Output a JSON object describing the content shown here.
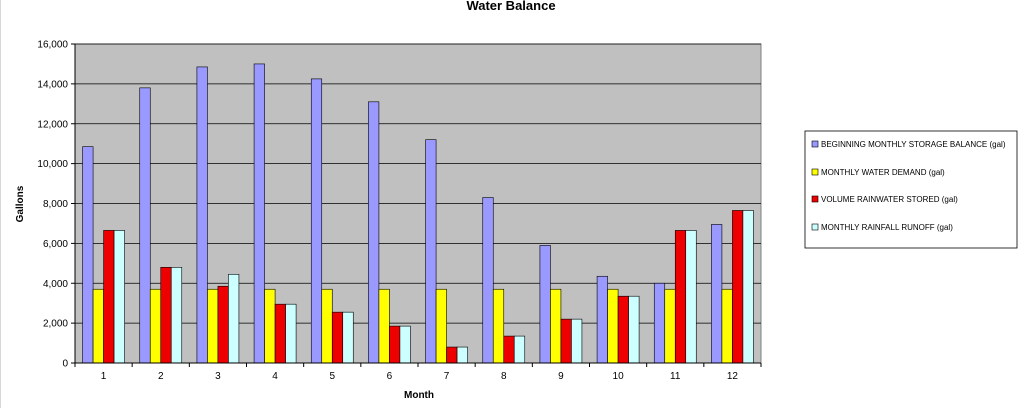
{
  "chart_data": {
    "type": "bar",
    "title": "Water Balance",
    "xlabel": "Month",
    "ylabel": "Gallons",
    "ylim": [
      0,
      16000
    ],
    "yticks": [
      0,
      2000,
      4000,
      6000,
      8000,
      10000,
      12000,
      14000,
      16000
    ],
    "ytick_labels": [
      "0",
      "2,000",
      "4,000",
      "6,000",
      "8,000",
      "10,000",
      "12,000",
      "14,000",
      "16,000"
    ],
    "categories": [
      "1",
      "2",
      "3",
      "4",
      "5",
      "6",
      "7",
      "8",
      "9",
      "10",
      "11",
      "12"
    ],
    "grid": true,
    "legend_position": "right",
    "series": [
      {
        "name": "BEGINNING MONTHLY STORAGE BALANCE (gal)",
        "color": "#9999ff",
        "values": [
          10850,
          13800,
          14850,
          15000,
          14250,
          13100,
          11200,
          8300,
          5900,
          4350,
          4000,
          6950
        ]
      },
      {
        "name": "MONTHLY WATER DEMAND (gal)",
        "color": "#ffff00",
        "values": [
          3700,
          3700,
          3700,
          3700,
          3700,
          3700,
          3700,
          3700,
          3700,
          3700,
          3700,
          3700
        ]
      },
      {
        "name": "VOLUME RAINWATER STORED  (gal)",
        "color": "#ee0000",
        "values": [
          6650,
          4800,
          3850,
          2950,
          2550,
          1850,
          800,
          1350,
          2200,
          3350,
          6650,
          7650
        ]
      },
      {
        "name": "MONTHLY RAINFALL RUNOFF (gal)",
        "color": "#ccffff",
        "values": [
          6650,
          4800,
          4450,
          2950,
          2550,
          1850,
          800,
          1350,
          2200,
          3350,
          6650,
          7650
        ]
      }
    ]
  }
}
